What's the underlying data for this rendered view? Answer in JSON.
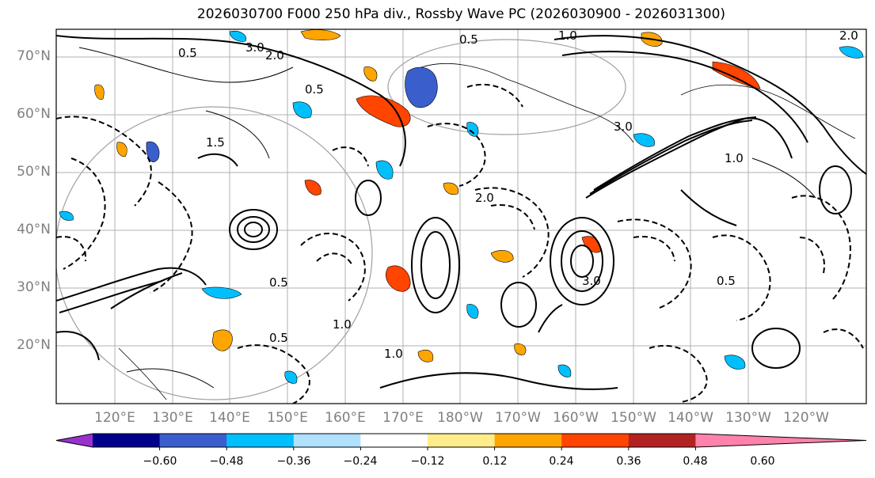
{
  "title": "2026030700 F000 250 hPa div., Rossby Wave PC (2026030900 - 2026031300)",
  "lat_labels": [
    "70°N",
    "60°N",
    "50°N",
    "40°N",
    "30°N",
    "20°N"
  ],
  "lon_labels": [
    "120°E",
    "130°E",
    "140°E",
    "150°E",
    "160°E",
    "170°E",
    "180°W",
    "170°W",
    "160°W",
    "150°W",
    "140°W",
    "130°W",
    "120°W"
  ],
  "colorbar": {
    "ticks": [
      "−0.60",
      "−0.48",
      "−0.36",
      "−0.24",
      "−0.12",
      "0.12",
      "0.24",
      "0.36",
      "0.48",
      "0.60"
    ],
    "levels": [
      -0.6,
      -0.48,
      -0.36,
      -0.24,
      -0.12,
      0.12,
      0.24,
      0.36,
      0.48,
      0.6
    ],
    "colors": [
      "#9932cc",
      "#00008b",
      "#3a5fcd",
      "#00bfff",
      "#b0e2ff",
      "#ffffff",
      "#ffec8b",
      "#ffa500",
      "#ff4500",
      "#b22222",
      "#ff82ab"
    ]
  },
  "contour_labels": [
    "0.5",
    "3.0",
    "2.0",
    "1.0",
    "0.5",
    "3.0",
    "1.0",
    "1.5",
    "0.5",
    "2.0",
    "0.5",
    "1.0",
    "3.0",
    "0.5",
    "1.0",
    "2.0",
    "0.5"
  ]
}
